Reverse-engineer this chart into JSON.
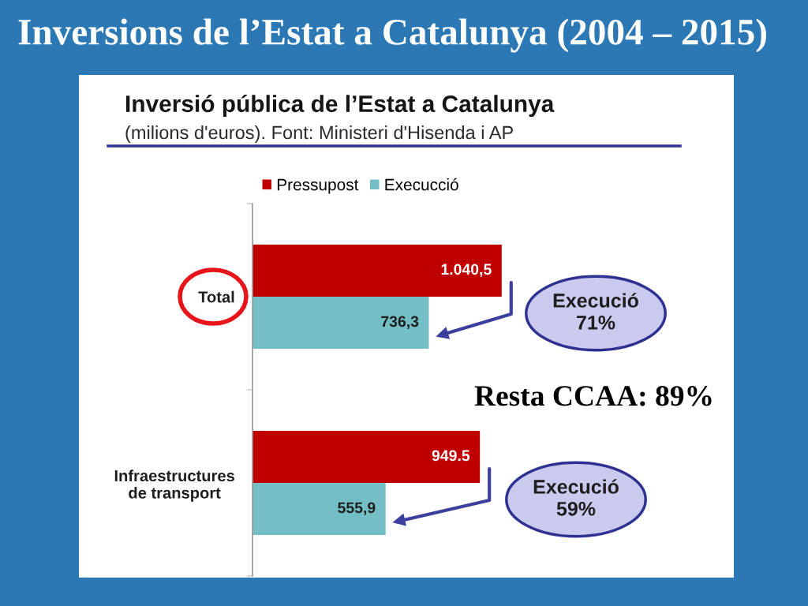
{
  "chart_data": {
    "type": "bar",
    "orientation": "horizontal",
    "title": "Inversions de l’Estat a Catalunya (2004 – 2015)",
    "subtitle": "Inversió pública de l’Estat a Catalunya",
    "categories": [
      "Total",
      "Infraestructures\nde transport"
    ],
    "series": [
      {
        "name": "Pressupost",
        "color": "#c00000",
        "values": [
          1040.5,
          949.5
        ],
        "value_labels": [
          "1.040,5",
          "949.5"
        ]
      },
      {
        "name": "Execucció",
        "color": "#74bfc6",
        "values": [
          736.3,
          555.9
        ],
        "value_labels": [
          "736,3",
          "555,9"
        ]
      }
    ],
    "legend": "top",
    "annotations": [
      "(milions d'euros). Font: Ministeri d'Hisenda i AP",
      "Execució\n71%",
      "Execució\n59%",
      "Resta CCAA: 89%"
    ]
  }
}
